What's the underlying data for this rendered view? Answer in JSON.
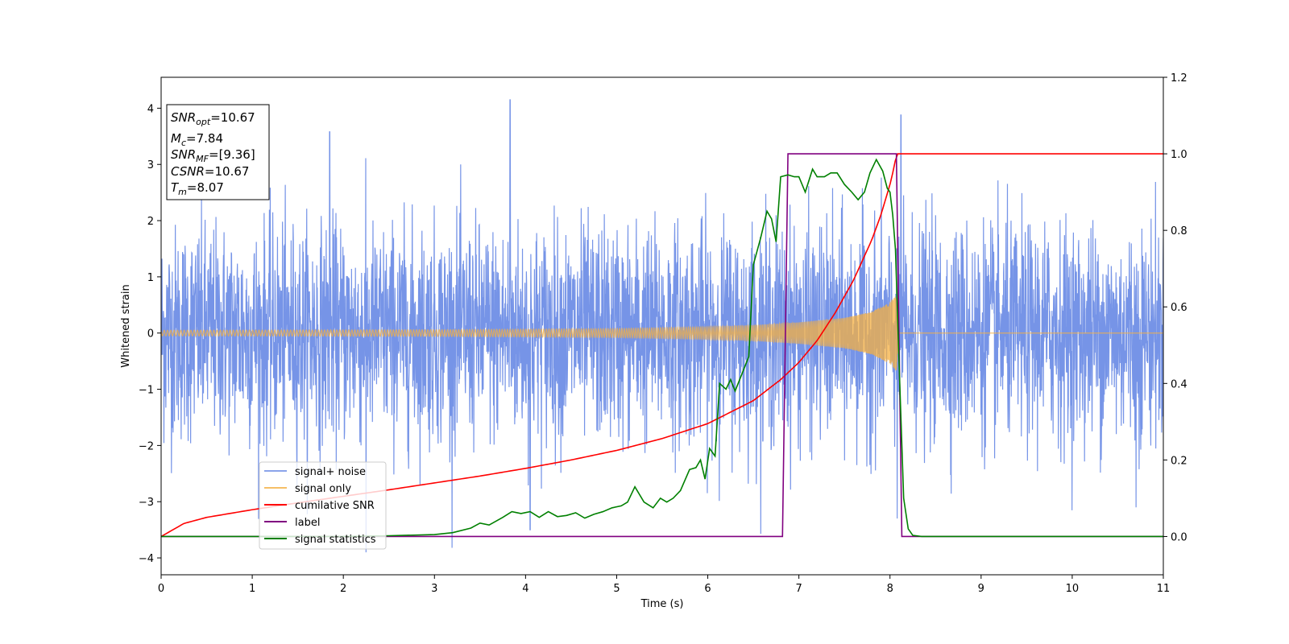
{
  "chart_data": {
    "type": "line",
    "xlabel": "Time (s)",
    "ylabel": "Whitened strain",
    "xlim": [
      0,
      11
    ],
    "ylim_left": [
      -4.3,
      4.55
    ],
    "ylim_right": [
      -0.1,
      1.2
    ],
    "x_ticks": [
      "0",
      "1",
      "2",
      "3",
      "4",
      "5",
      "6",
      "7",
      "8",
      "9",
      "10",
      "11"
    ],
    "y_left_ticks": [
      "−4",
      "−3",
      "−2",
      "−1",
      "0",
      "1",
      "2",
      "3",
      "4"
    ],
    "y_right_ticks": [
      "0.0",
      "0.2",
      "0.4",
      "0.6",
      "0.8",
      "1.0",
      "1.2"
    ],
    "grid": false,
    "legend_position": "lower-left",
    "info_box": {
      "snr_opt_label": "SNR",
      "snr_opt_sub": "opt",
      "snr_opt_value": "=10.67",
      "mc_label": "M",
      "mc_sub": "c",
      "mc_value": "=7.84",
      "snr_mf_label": "SNR",
      "snr_mf_sub": "MF",
      "snr_mf_value": "=[9.36]",
      "csnr_label": "CSNR",
      "csnr_value": "=10.67",
      "tm_label": "T",
      "tm_sub": "m",
      "tm_value": "=8.07"
    },
    "series": [
      {
        "name": "signal+ noise",
        "color": "#6f8ee6",
        "axis": "left",
        "description_values": {
          "noise_std": 0.95,
          "peaks": [
            [
              3.83,
              4.15
            ],
            [
              8.12,
              3.88
            ],
            [
              1.85,
              3.58
            ],
            [
              4.05,
              -3.5
            ],
            [
              2.25,
              -3.9
            ],
            [
              10.7,
              -3.1
            ],
            [
              8.08,
              -3.3
            ]
          ]
        }
      },
      {
        "name": "signal only",
        "color": "#f5b041",
        "axis": "left",
        "envelope": {
          "x": [
            0,
            3,
            5,
            6,
            6.5,
            7,
            7.5,
            7.8,
            8.0,
            8.07,
            8.1,
            11
          ],
          "amp": [
            0.05,
            0.06,
            0.08,
            0.11,
            0.14,
            0.19,
            0.27,
            0.38,
            0.55,
            0.68,
            0.0,
            0.0
          ]
        }
      },
      {
        "name": "cumilative SNR",
        "color": "#ff0000",
        "axis": "right",
        "x": [
          0,
          0.25,
          0.5,
          1,
          1.5,
          2,
          2.5,
          3,
          3.5,
          4,
          4.5,
          5,
          5.5,
          6,
          6.5,
          6.8,
          7.0,
          7.2,
          7.4,
          7.6,
          7.8,
          7.9,
          8.0,
          8.05,
          8.07,
          8.1,
          11
        ],
        "values": [
          0.0,
          0.034,
          0.05,
          0.07,
          0.088,
          0.105,
          0.122,
          0.14,
          0.158,
          0.178,
          0.2,
          0.225,
          0.256,
          0.295,
          0.355,
          0.41,
          0.455,
          0.512,
          0.585,
          0.67,
          0.775,
          0.84,
          0.92,
          0.97,
          1.0,
          1.0,
          1.0
        ]
      },
      {
        "name": "label",
        "color": "#800080",
        "axis": "right",
        "x": [
          0,
          6.82,
          6.88,
          8.07,
          8.13,
          11
        ],
        "values": [
          0.0,
          0.0,
          1.0,
          1.0,
          0.0,
          0.0
        ]
      },
      {
        "name": "signal statistics",
        "color": "#008000",
        "axis": "right",
        "x": [
          0,
          0.5,
          1,
          1.5,
          2,
          2.5,
          3,
          3.2,
          3.4,
          3.5,
          3.6,
          3.75,
          3.85,
          3.95,
          4.05,
          4.15,
          4.25,
          4.35,
          4.45,
          4.55,
          4.65,
          4.75,
          4.85,
          4.95,
          5.05,
          5.12,
          5.2,
          5.3,
          5.4,
          5.48,
          5.55,
          5.62,
          5.7,
          5.8,
          5.87,
          5.92,
          5.97,
          6.02,
          6.08,
          6.13,
          6.2,
          6.25,
          6.3,
          6.35,
          6.45,
          6.5,
          6.58,
          6.65,
          6.7,
          6.75,
          6.8,
          6.88,
          6.95,
          7.0,
          7.07,
          7.15,
          7.2,
          7.28,
          7.35,
          7.42,
          7.5,
          7.58,
          7.65,
          7.72,
          7.78,
          7.85,
          7.92,
          7.97,
          8.0,
          8.03,
          8.06,
          8.1,
          8.15,
          8.2,
          8.25,
          8.35,
          8.5,
          9,
          10,
          11
        ],
        "values": [
          0.0,
          0.0,
          0.0,
          0.0,
          0.0,
          0.002,
          0.005,
          0.01,
          0.022,
          0.035,
          0.03,
          0.05,
          0.065,
          0.06,
          0.065,
          0.05,
          0.065,
          0.052,
          0.055,
          0.062,
          0.048,
          0.058,
          0.065,
          0.075,
          0.08,
          0.09,
          0.13,
          0.09,
          0.075,
          0.1,
          0.09,
          0.1,
          0.12,
          0.175,
          0.18,
          0.2,
          0.15,
          0.23,
          0.21,
          0.4,
          0.385,
          0.41,
          0.38,
          0.41,
          0.47,
          0.71,
          0.78,
          0.85,
          0.83,
          0.77,
          0.94,
          0.945,
          0.94,
          0.94,
          0.9,
          0.96,
          0.94,
          0.94,
          0.95,
          0.95,
          0.92,
          0.9,
          0.88,
          0.9,
          0.95,
          0.985,
          0.955,
          0.91,
          0.9,
          0.84,
          0.75,
          0.45,
          0.1,
          0.02,
          0.003,
          0.0,
          0.0,
          0.0,
          0.0,
          0.0
        ]
      }
    ]
  }
}
